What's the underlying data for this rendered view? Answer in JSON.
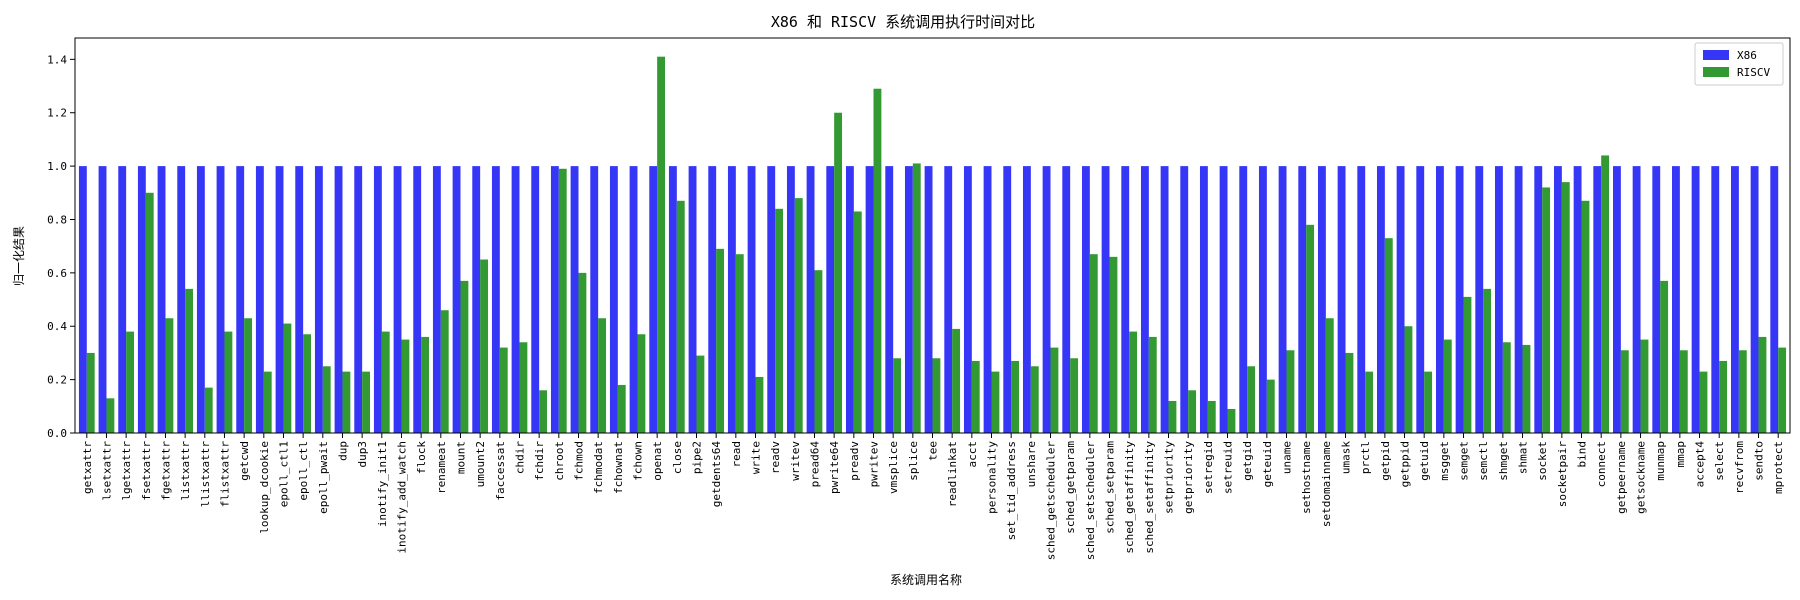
{
  "chart_data": {
    "type": "bar",
    "title": "X86 和 RISCV 系统调用执行时间对比",
    "xlabel": "系统调用名称",
    "ylabel": "归一化结果",
    "ylim": [
      0,
      1.48
    ],
    "yticks": [
      "0.0",
      "0.2",
      "0.4",
      "0.6",
      "0.8",
      "1.0",
      "1.2",
      "1.4"
    ],
    "legend_position": "top-right",
    "grid": false,
    "categories": [
      "getxattr",
      "lsetxattr",
      "lgetxattr",
      "fsetxattr",
      "fgetxattr",
      "listxattr",
      "llistxattr",
      "flistxattr",
      "getcwd",
      "lookup_dcookie",
      "epoll_ctl1",
      "epoll_ctl",
      "epoll_pwait",
      "dup",
      "dup3",
      "inotify_init1",
      "inotify_add_watch",
      "flock",
      "renameat",
      "mount",
      "umount2",
      "faccessat",
      "chdir",
      "fchdir",
      "chroot",
      "fchmod",
      "fchmodat",
      "fchownat",
      "fchown",
      "openat",
      "close",
      "pipe2",
      "getdents64",
      "read",
      "write",
      "readv",
      "writev",
      "pread64",
      "pwrite64",
      "preadv",
      "pwritev",
      "vmsplice",
      "splice",
      "tee",
      "readlinkat",
      "acct",
      "personality",
      "set_tid_address",
      "unshare",
      "sched_getscheduler",
      "sched_getparam",
      "sched_setscheduler",
      "sched_setparam",
      "sched_getaffinity",
      "sched_setaffinity",
      "setpriority",
      "getpriority",
      "setregid",
      "setreuid",
      "getgid",
      "geteuid",
      "uname",
      "sethostname",
      "setdomainname",
      "umask",
      "prctl",
      "getpid",
      "getppid",
      "getuid",
      "msgget",
      "semget",
      "semctl",
      "shmget",
      "shmat",
      "socket",
      "socketpair",
      "bind",
      "connect",
      "getpeername",
      "getsockname",
      "munmap",
      "mmap",
      "accept4",
      "select",
      "recvfrom",
      "sendto",
      "mprotect"
    ],
    "series": [
      {
        "name": "X86",
        "color": "#3636f7",
        "values": [
          1,
          1,
          1,
          1,
          1,
          1,
          1,
          1,
          1,
          1,
          1,
          1,
          1,
          1,
          1,
          1,
          1,
          1,
          1,
          1,
          1,
          1,
          1,
          1,
          1,
          1,
          1,
          1,
          1,
          1,
          1,
          1,
          1,
          1,
          1,
          1,
          1,
          1,
          1,
          1,
          1,
          1,
          1,
          1,
          1,
          1,
          1,
          1,
          1,
          1,
          1,
          1,
          1,
          1,
          1,
          1,
          1,
          1,
          1,
          1,
          1,
          1,
          1,
          1,
          1,
          1,
          1,
          1,
          1,
          1,
          1,
          1,
          1,
          1,
          1,
          1,
          1,
          1,
          1,
          1,
          1,
          1,
          1,
          1,
          1,
          1,
          1
        ]
      },
      {
        "name": "RISCV",
        "color": "#339933",
        "values": [
          0.3,
          0.13,
          0.38,
          0.9,
          0.43,
          0.54,
          0.17,
          0.38,
          0.43,
          0.23,
          0.41,
          0.37,
          0.25,
          0.23,
          0.23,
          0.38,
          0.35,
          0.36,
          0.46,
          0.57,
          0.65,
          0.32,
          0.34,
          0.16,
          0.99,
          0.6,
          0.43,
          0.18,
          0.37,
          1.41,
          0.87,
          0.29,
          0.69,
          0.67,
          0.21,
          0.84,
          0.88,
          0.61,
          1.2,
          0.83,
          1.29,
          0.28,
          1.01,
          0.28,
          0.39,
          0.27,
          0.23,
          0.27,
          0.25,
          0.32,
          0.28,
          0.67,
          0.66,
          0.38,
          0.36,
          0.12,
          0.16,
          0.12,
          0.09,
          0.25,
          0.2,
          0.31,
          0.78,
          0.43,
          0.3,
          0.23,
          0.73,
          0.4,
          0.23,
          0.35,
          0.51,
          0.54,
          0.34,
          0.33,
          0.92,
          0.94,
          0.87,
          1.04,
          0.31,
          0.35,
          0.57,
          0.31,
          0.23,
          0.27,
          0.31,
          0.36,
          0.32
        ]
      }
    ]
  }
}
